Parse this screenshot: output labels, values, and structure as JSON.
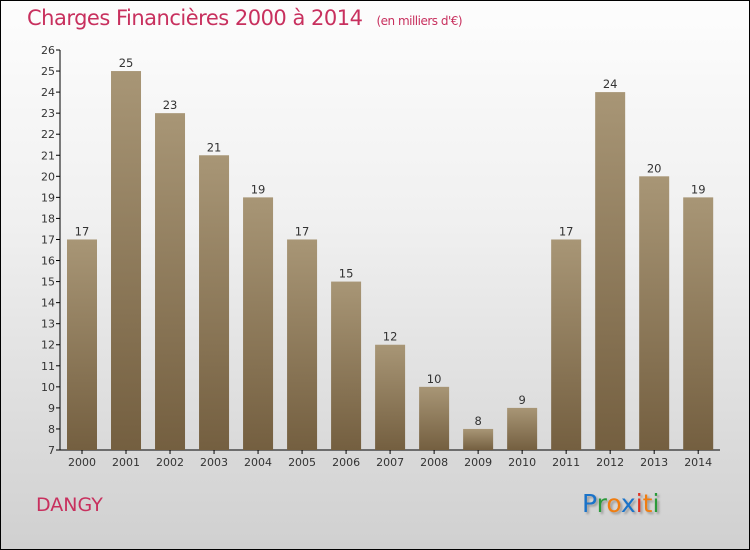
{
  "chart_data": {
    "type": "bar",
    "title": "Charges Financières 2000 à 2014",
    "subtitle": "(en milliers d'€)",
    "categories": [
      "2000",
      "2001",
      "2002",
      "2003",
      "2004",
      "2005",
      "2006",
      "2007",
      "2008",
      "2009",
      "2010",
      "2011",
      "2012",
      "2013",
      "2014"
    ],
    "values": [
      17,
      25,
      23,
      21,
      19,
      17,
      15,
      12,
      10,
      8,
      9,
      17,
      24,
      20,
      19
    ],
    "ylim": [
      7,
      26
    ],
    "yticks": [
      7,
      8,
      9,
      10,
      11,
      12,
      13,
      14,
      15,
      16,
      17,
      18,
      19,
      20,
      21,
      22,
      23,
      24,
      25,
      26
    ],
    "xlabel": "",
    "ylabel": "",
    "grid": false
  },
  "town": "DANGY",
  "logo": {
    "letters": [
      "P",
      "r",
      "o",
      "x",
      "i",
      "t",
      "i"
    ],
    "colors": [
      "#1a73c9",
      "#2a9a3a",
      "#f07d10",
      "#1a73c9",
      "#e03020",
      "#f07d10",
      "#2a9a3a"
    ]
  }
}
